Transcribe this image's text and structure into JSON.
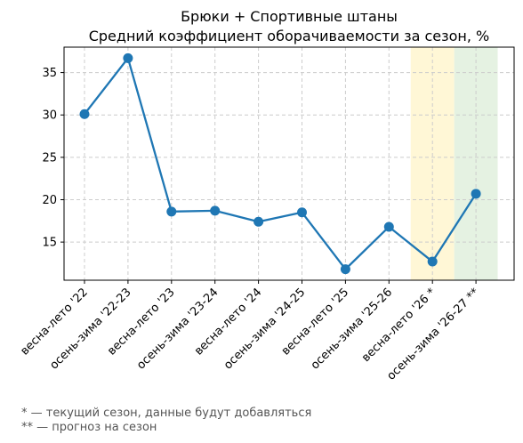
{
  "chart_data": {
    "type": "line",
    "title_line1": "Брюки + Спортивные штаны",
    "title_line2": "Средний коэффициент оборачиваемости за сезон, %",
    "xlabel": "",
    "ylabel": "",
    "categories": [
      "весна-лето '22",
      "осень-зима '22-23",
      "весна-лето '23",
      "осень-зима '23-24",
      "весна-лето '24",
      "осень-зима '24-25",
      "весна-лето '25",
      "осень-зима '25-26",
      "весна-лето '26 *",
      "осень-зима '26-27 **"
    ],
    "series": [
      {
        "values": [
          30.1,
          36.7,
          18.6,
          18.7,
          17.4,
          18.5,
          11.8,
          16.8,
          12.7,
          20.7
        ]
      }
    ],
    "ylim": [
      10.5,
      38.0
    ],
    "yticks": [
      15,
      20,
      25,
      30,
      35
    ],
    "grid": true,
    "highlights": [
      {
        "category_index": 8,
        "color": "#fff7d6"
      },
      {
        "category_index": 9,
        "color": "#e5f2e2"
      }
    ],
    "line_color": "#1f77b4"
  },
  "footnotes": {
    "note1": "* — текущий сезон, данные будут добавляться",
    "note2": "** — прогноз на сезон"
  }
}
